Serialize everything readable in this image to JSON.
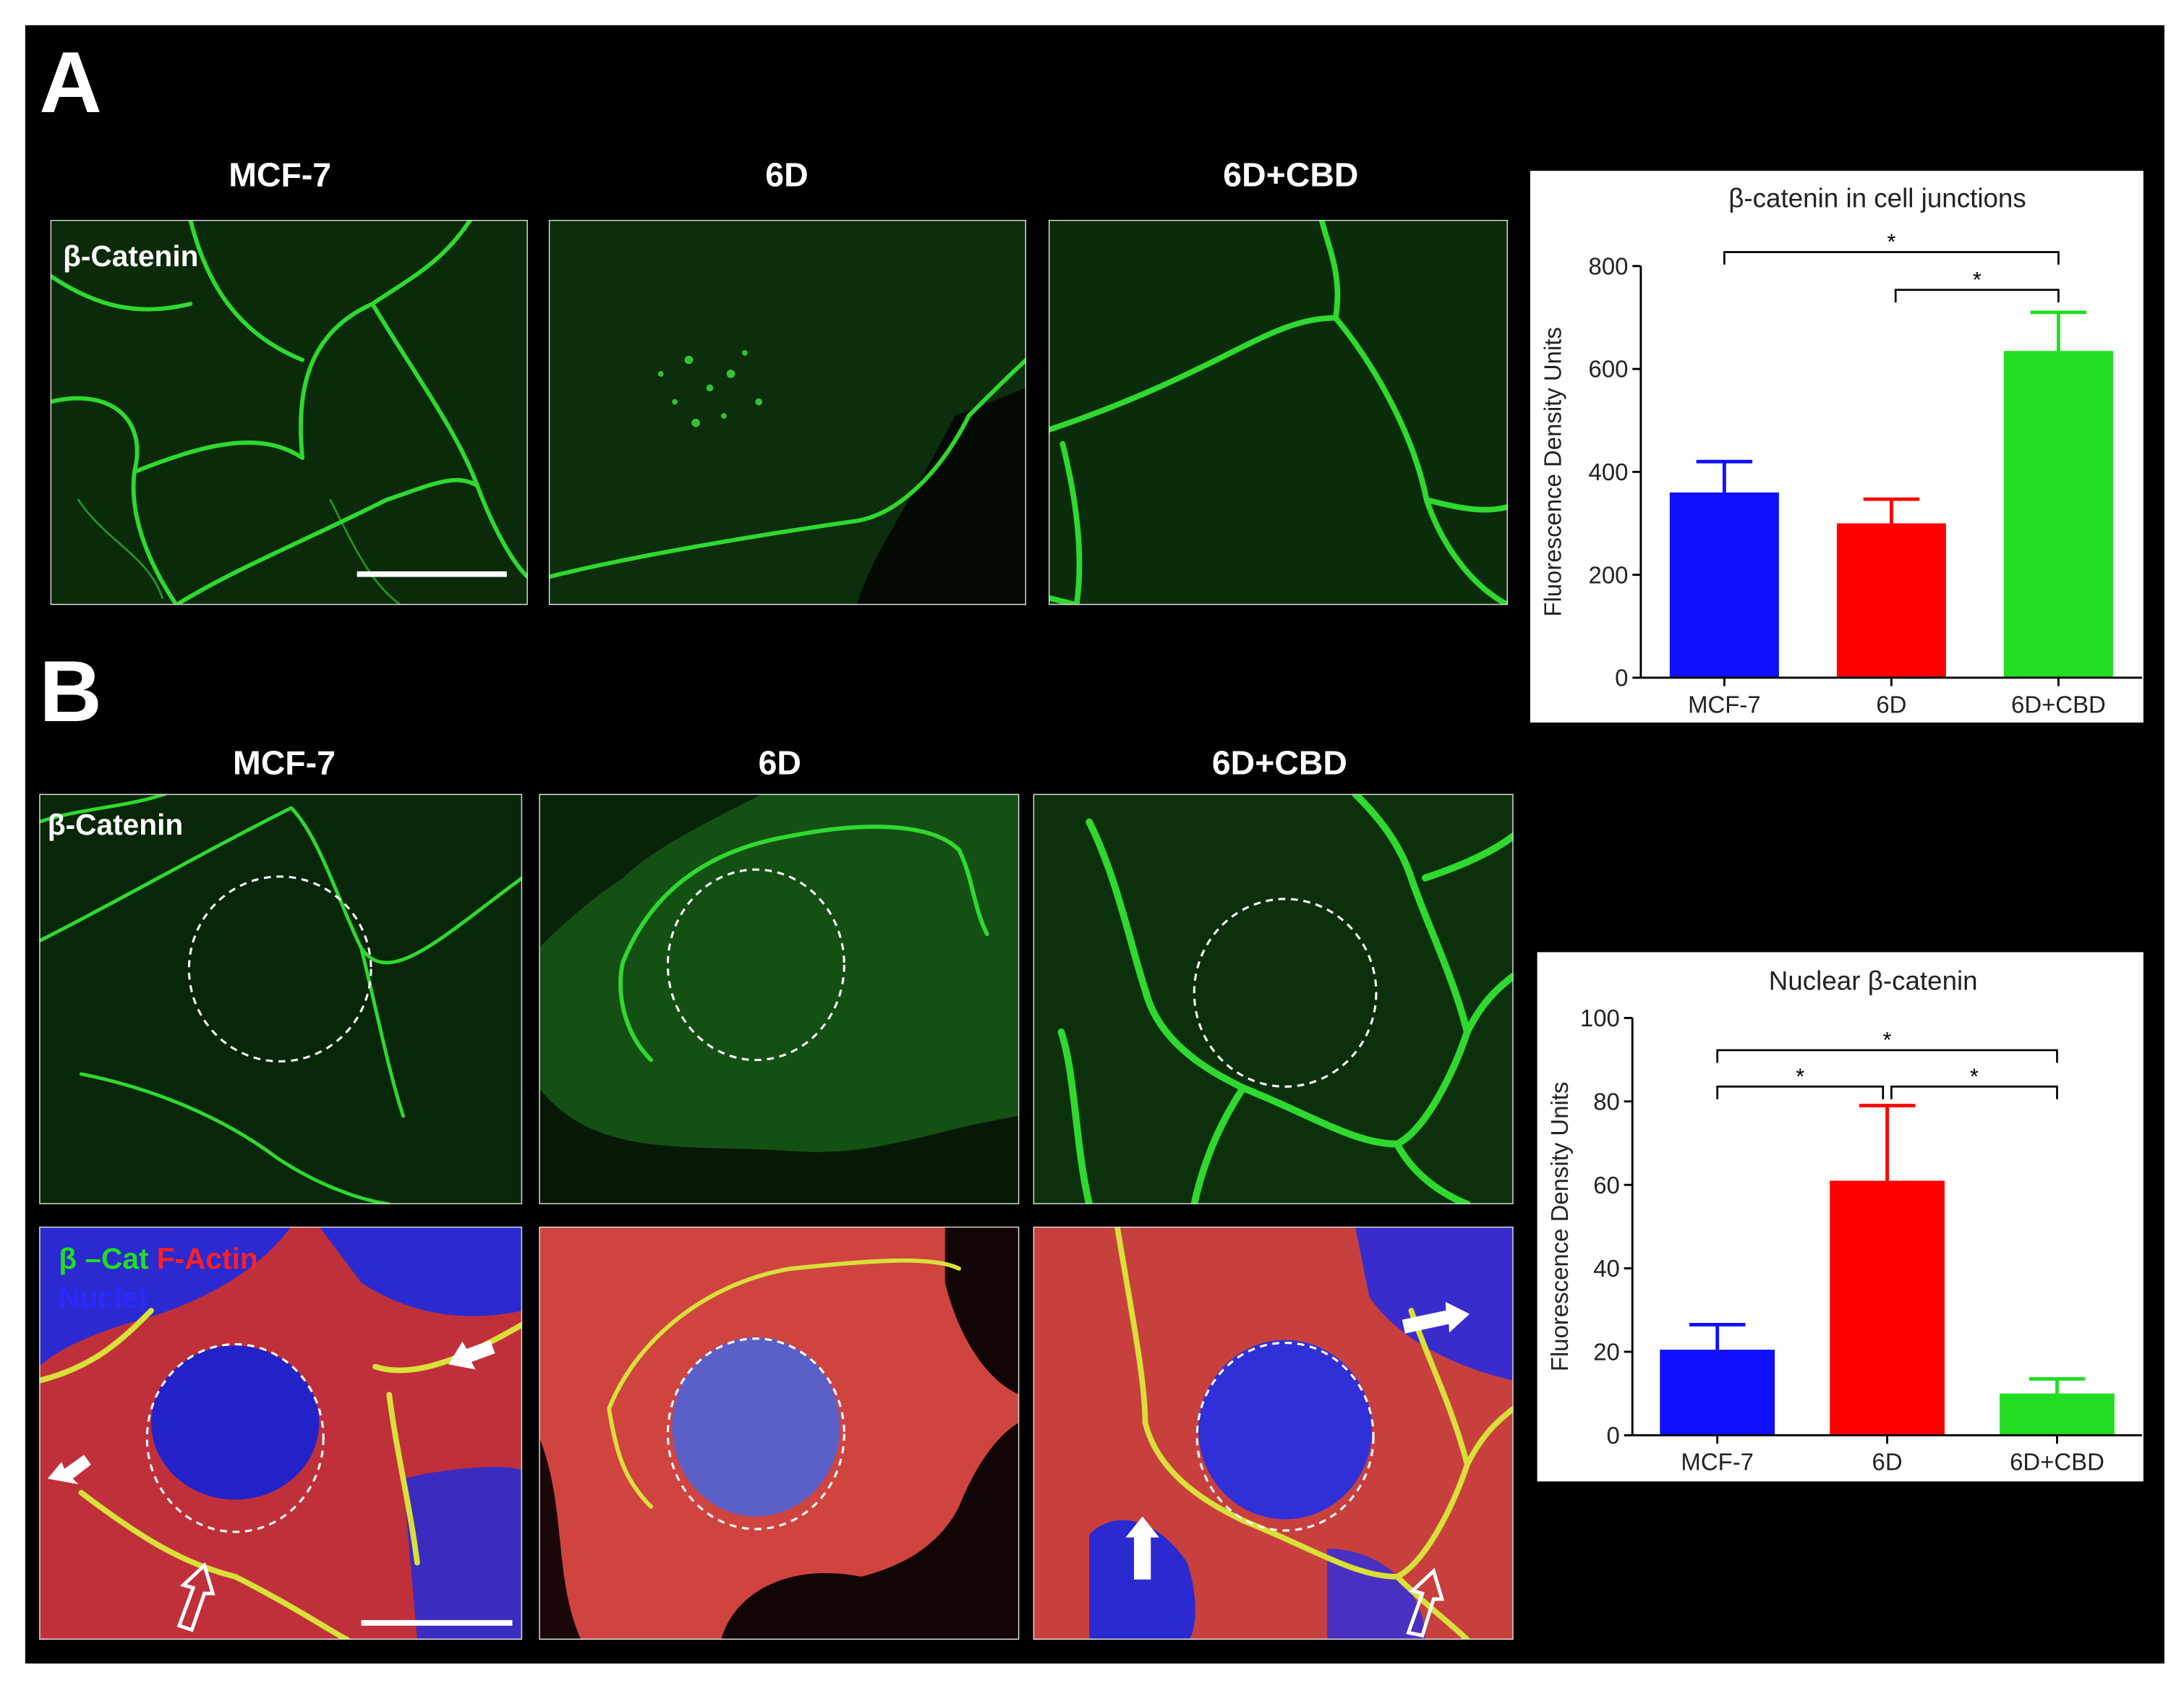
{
  "figure": {
    "panel_a": "A",
    "panel_b": "B",
    "columns_a": [
      "MCF-7",
      "6D",
      "6D+CBD"
    ],
    "columns_b": [
      "MCF-7",
      "6D",
      "6D+CBD"
    ],
    "stain_a": "β-Catenin",
    "stain_b": "β-Catenin",
    "merge_labels": [
      "β –Cat",
      "F-Actin",
      "Nuclei"
    ]
  },
  "chart_data": [
    {
      "type": "bar",
      "title": "β-catenin in cell junctions",
      "ylabel": "Fluorescence Density Units",
      "categories": [
        "MCF-7",
        "6D",
        "6D+CBD"
      ],
      "values": [
        360,
        300,
        635
      ],
      "errors": [
        60,
        47,
        75
      ],
      "colors": [
        "#1010ff",
        "#ff0000",
        "#22dd22"
      ],
      "ylim": [
        0,
        800
      ],
      "yticks": [
        0,
        200,
        400,
        600,
        800
      ],
      "significance": [
        {
          "text": "*",
          "from": 0,
          "to": 2
        },
        {
          "text": "*",
          "from": 1,
          "to": 2
        }
      ]
    },
    {
      "type": "bar",
      "title": "Nuclear β-catenin",
      "ylabel": "Fluorescence Density Units",
      "categories": [
        "MCF-7",
        "6D",
        "6D+CBD"
      ],
      "values": [
        20.5,
        61,
        10
      ],
      "errors": [
        6,
        18,
        3.5
      ],
      "colors": [
        "#1010ff",
        "#ff0000",
        "#22dd22"
      ],
      "ylim": [
        0,
        100
      ],
      "yticks": [
        0,
        20,
        40,
        60,
        80,
        100
      ],
      "significance": [
        {
          "text": "*",
          "from": 0,
          "to": 2
        },
        {
          "text": "*",
          "from": 0,
          "to": 1
        },
        {
          "text": "*",
          "from": 1,
          "to": 2
        }
      ]
    }
  ]
}
